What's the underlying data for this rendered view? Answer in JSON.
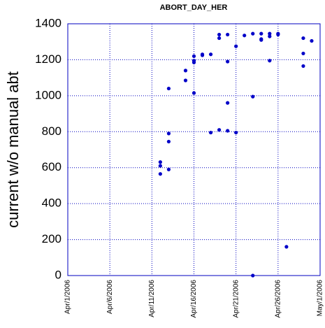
{
  "chart_data": {
    "type": "scatter",
    "title": "ABORT_DAY_HER",
    "y_label": "current w/o manual abt",
    "color": "#0000c8",
    "grid": true,
    "x": [
      "2006-04-12",
      "2006-04-12",
      "2006-04-12",
      "2006-04-13",
      "2006-04-13",
      "2006-04-13",
      "2006-04-13",
      "2006-04-15",
      "2006-04-15",
      "2006-04-16",
      "2006-04-16",
      "2006-04-16",
      "2006-04-16",
      "2006-04-17",
      "2006-04-17",
      "2006-04-18",
      "2006-04-18",
      "2006-04-19",
      "2006-04-19",
      "2006-04-19",
      "2006-04-20",
      "2006-04-20",
      "2006-04-20",
      "2006-04-20",
      "2006-04-21",
      "2006-04-21",
      "2006-04-22",
      "2006-04-23",
      "2006-04-23",
      "2006-04-23",
      "2006-04-24",
      "2006-04-24",
      "2006-04-24",
      "2006-04-25",
      "2006-04-25",
      "2006-04-25",
      "2006-04-26",
      "2006-04-26",
      "2006-04-27",
      "2006-04-29",
      "2006-04-29",
      "2006-04-29",
      "2006-04-30"
    ],
    "values": [
      631,
      610,
      565,
      1040,
      790,
      745,
      590,
      1140,
      1085,
      1220,
      1195,
      1185,
      1015,
      1230,
      1225,
      1230,
      795,
      1340,
      1320,
      810,
      1340,
      1190,
      960,
      805,
      1275,
      795,
      1335,
      1345,
      995,
      0,
      1345,
      1315,
      1310,
      1345,
      1330,
      1195,
      1345,
      1340,
      160,
      1320,
      1235,
      1165,
      1305
    ],
    "xlim": [
      "2006-04-01",
      "2006-05-01"
    ],
    "xticks": [
      {
        "value": "2006-04-01",
        "label": "Apr/1/2006"
      },
      {
        "value": "2006-04-06",
        "label": "Apr/6/2006"
      },
      {
        "value": "2006-04-11",
        "label": "Apr/11/2006"
      },
      {
        "value": "2006-04-16",
        "label": "Apr/16/2006"
      },
      {
        "value": "2006-04-21",
        "label": "Apr/21/2006"
      },
      {
        "value": "2006-04-26",
        "label": "Apr/26/2006"
      },
      {
        "value": "2006-05-01",
        "label": "May/1/2006"
      }
    ],
    "ylim": [
      0,
      1400
    ],
    "yticks": [
      0,
      200,
      400,
      600,
      800,
      1000,
      1200,
      1400
    ]
  }
}
